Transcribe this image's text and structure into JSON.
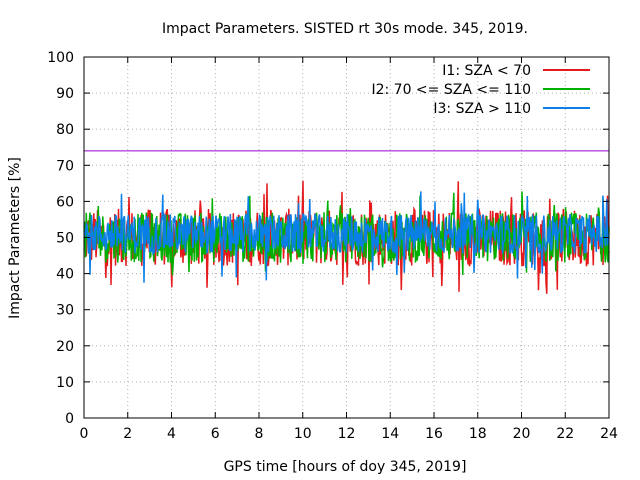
{
  "chart_data": {
    "type": "line",
    "title": "Impact Parameters. SISTED rt 30s mode. 345, 2019.",
    "xlabel": "GPS time [hours of doy 345, 2019]",
    "ylabel": "Impact Parameters [%]",
    "xlim": [
      0,
      24
    ],
    "ylim": [
      0,
      100
    ],
    "xticks": [
      0,
      2,
      4,
      6,
      8,
      10,
      12,
      14,
      16,
      18,
      20,
      22,
      24
    ],
    "yticks": [
      0,
      10,
      20,
      30,
      40,
      50,
      60,
      70,
      80,
      90,
      100
    ],
    "grid": true,
    "legend_position": "top-right",
    "reference_line": {
      "y": 74,
      "color": "#9400d3"
    },
    "series": [
      {
        "name": "I1: SZA < 70",
        "color": "#e41a1c",
        "mean": 50,
        "typical_range": [
          42,
          58
        ],
        "min": 34,
        "max": 66
      },
      {
        "name": "I2: 70 <= SZA <= 110",
        "color": "#00b000",
        "mean": 50,
        "typical_range": [
          43,
          57
        ],
        "min": 39,
        "max": 63
      },
      {
        "name": "I3: SZA > 110",
        "color": "#0a7fe8",
        "mean": 51,
        "typical_range": [
          45,
          56
        ],
        "min": 37,
        "max": 63
      }
    ]
  }
}
